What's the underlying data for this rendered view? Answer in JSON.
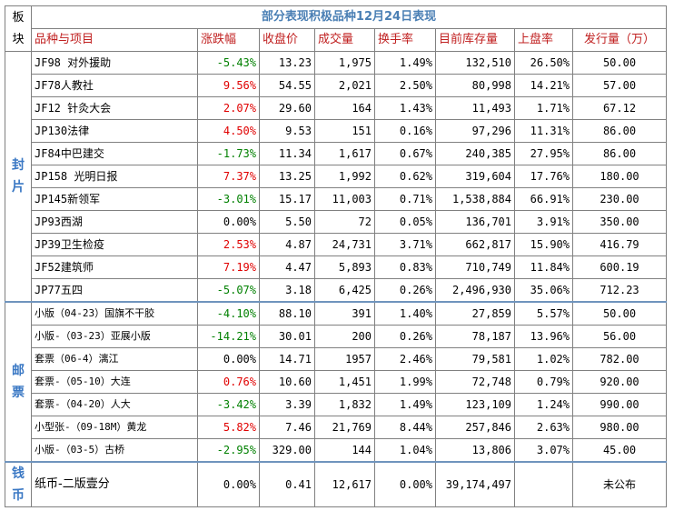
{
  "table": {
    "corner_label": "板块",
    "title": "部分表现积极品种12月24日表现",
    "headers": [
      "品种与项目",
      "涨跌幅",
      "收盘价",
      "成交量",
      "换手率",
      "目前库存量",
      "上盘率",
      "发行量（万）"
    ],
    "sections": [
      {
        "label": "封片",
        "rows": [
          {
            "name": "JF98 对外援助",
            "change": "-5.43%",
            "dir": "down",
            "close": "13.23",
            "volume": "1,975",
            "turnover": "1.49%",
            "stock": "132,510",
            "rate": "26.50%",
            "issue": "50.00"
          },
          {
            "name": "JF78人教社",
            "change": "9.56%",
            "dir": "up",
            "close": "54.55",
            "volume": "2,021",
            "turnover": "2.50%",
            "stock": "80,998",
            "rate": "14.21%",
            "issue": "57.00"
          },
          {
            "name": "JF12 针灸大会",
            "change": "2.07%",
            "dir": "up",
            "close": "29.60",
            "volume": "164",
            "turnover": "1.43%",
            "stock": "11,493",
            "rate": "1.71%",
            "issue": "67.12"
          },
          {
            "name": "JP130法律",
            "change": "4.50%",
            "dir": "up",
            "close": "9.53",
            "volume": "151",
            "turnover": "0.16%",
            "stock": "97,296",
            "rate": "11.31%",
            "issue": "86.00"
          },
          {
            "name": "JF84中巴建交",
            "change": "-1.73%",
            "dir": "down",
            "close": "11.34",
            "volume": "1,617",
            "turnover": "0.67%",
            "stock": "240,385",
            "rate": "27.95%",
            "issue": "86.00"
          },
          {
            "name": "JP158 光明日报",
            "change": "7.37%",
            "dir": "up",
            "close": "13.25",
            "volume": "1,992",
            "turnover": "0.62%",
            "stock": "319,604",
            "rate": "17.76%",
            "issue": "180.00"
          },
          {
            "name": "JP145新领军",
            "change": "-3.01%",
            "dir": "down",
            "close": "15.17",
            "volume": "11,003",
            "turnover": "0.71%",
            "stock": "1,538,884",
            "rate": "66.91%",
            "issue": "230.00"
          },
          {
            "name": "JP93西湖",
            "change": "0.00%",
            "dir": "flat",
            "close": "5.50",
            "volume": "72",
            "turnover": "0.05%",
            "stock": "136,701",
            "rate": "3.91%",
            "issue": "350.00"
          },
          {
            "name": "JP39卫生检疫",
            "change": "2.53%",
            "dir": "up",
            "close": "4.87",
            "volume": "24,731",
            "turnover": "3.71%",
            "stock": "662,817",
            "rate": "15.90%",
            "issue": "416.79"
          },
          {
            "name": "JF52建筑师",
            "change": "7.19%",
            "dir": "up",
            "close": "4.47",
            "volume": "5,893",
            "turnover": "0.83%",
            "stock": "710,749",
            "rate": "11.84%",
            "issue": "600.19"
          },
          {
            "name": "JP77五四",
            "change": "-5.07%",
            "dir": "down",
            "close": "3.18",
            "volume": "6,425",
            "turnover": "0.26%",
            "stock": "2,496,930",
            "rate": "35.06%",
            "issue": "712.23"
          }
        ]
      },
      {
        "label": "邮票",
        "rows": [
          {
            "name": "小版（04-23）国旗不干胶",
            "change": "-4.10%",
            "dir": "down",
            "close": "88.10",
            "volume": "391",
            "turnover": "1.40%",
            "stock": "27,859",
            "rate": "5.57%",
            "issue": "50.00"
          },
          {
            "name": "小版-（03-23）亚展小版",
            "change": "-14.21%",
            "dir": "down",
            "close": "30.01",
            "volume": "200",
            "turnover": "0.26%",
            "stock": "78,187",
            "rate": "13.96%",
            "issue": "56.00"
          },
          {
            "name": "套票（06-4）漓江",
            "change": "0.00%",
            "dir": "flat",
            "close": "14.71",
            "volume": "1957",
            "turnover": "2.46%",
            "stock": "79,581",
            "rate": "1.02%",
            "issue": "782.00"
          },
          {
            "name": "套票-（05-10）大连",
            "change": "0.76%",
            "dir": "up",
            "close": "10.60",
            "volume": "1,451",
            "turnover": "1.99%",
            "stock": "72,748",
            "rate": "0.79%",
            "issue": "920.00"
          },
          {
            "name": "套票-（04-20）人大",
            "change": "-3.42%",
            "dir": "down",
            "close": "3.39",
            "volume": "1,832",
            "turnover": "1.49%",
            "stock": "123,109",
            "rate": "1.24%",
            "issue": "990.00"
          },
          {
            "name": "小型张-（09-18M）黄龙",
            "change": "5.82%",
            "dir": "up",
            "close": "7.46",
            "volume": "21,769",
            "turnover": "8.44%",
            "stock": "257,846",
            "rate": "2.63%",
            "issue": "980.00"
          },
          {
            "name": "小版-（03-5）古桥",
            "change": "-2.95%",
            "dir": "down",
            "close": "329.00",
            "volume": "144",
            "turnover": "1.04%",
            "stock": "13,806",
            "rate": "3.07%",
            "issue": "45.00"
          }
        ]
      },
      {
        "label": "钱币",
        "rows": [
          {
            "name": "纸币-二版壹分",
            "change": "0.00%",
            "dir": "flat",
            "close": "0.41",
            "volume": "12,617",
            "turnover": "0.00%",
            "stock": "39,174,497",
            "rate": "",
            "issue": "未公布"
          }
        ]
      }
    ]
  }
}
